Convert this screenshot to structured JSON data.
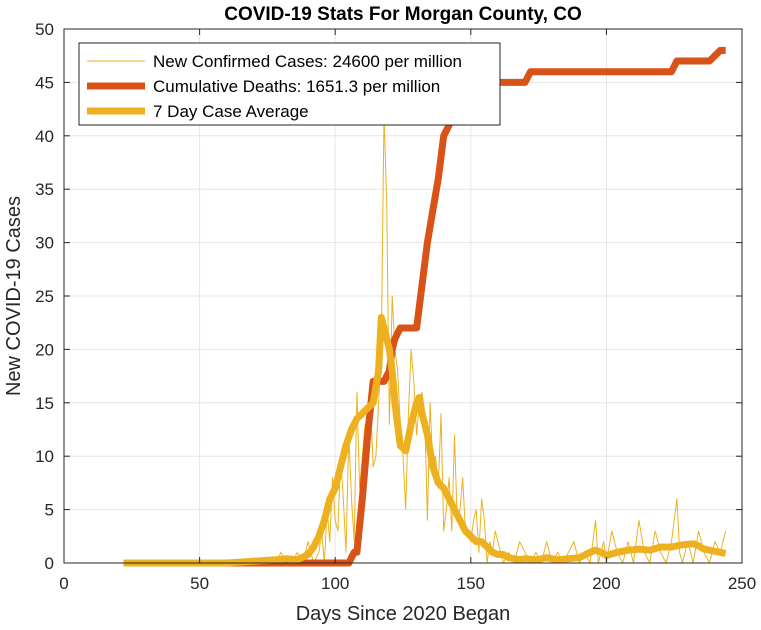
{
  "chart_data": {
    "type": "line",
    "title": "COVID-19 Stats For Morgan County, CO",
    "xlabel": "Days Since 2020 Began",
    "ylabel": "New COVID-19 Cases",
    "xlim": [
      0,
      250
    ],
    "ylim": [
      0,
      50
    ],
    "xticks": [
      0,
      50,
      100,
      150,
      200,
      250
    ],
    "yticks": [
      0,
      5,
      10,
      15,
      20,
      25,
      30,
      35,
      40,
      45,
      50
    ],
    "grid": true,
    "legend_position": "top-left",
    "series": [
      {
        "name": "New Confirmed Cases: 24600 per million",
        "color": "#EDB120",
        "style": "thin",
        "x": [
          22,
          40,
          60,
          78,
          80,
          82,
          84,
          86,
          88,
          90,
          92,
          94,
          95,
          96,
          97,
          98,
          99,
          100,
          101,
          102,
          103,
          104,
          105,
          106,
          107,
          108,
          109,
          110,
          111,
          112,
          113,
          114,
          115,
          116,
          117,
          118,
          119,
          120,
          121,
          122,
          123,
          124,
          125,
          126,
          127,
          128,
          129,
          130,
          131,
          132,
          133,
          134,
          135,
          136,
          137,
          138,
          139,
          140,
          141,
          142,
          143,
          144,
          145,
          146,
          147,
          148,
          149,
          150,
          151,
          152,
          153,
          154,
          155,
          156,
          157,
          158,
          159,
          160,
          162,
          164,
          166,
          168,
          170,
          172,
          174,
          176,
          178,
          180,
          182,
          184,
          186,
          188,
          190,
          192,
          194,
          196,
          197,
          198,
          199,
          200,
          202,
          204,
          206,
          208,
          210,
          212,
          214,
          216,
          218,
          220,
          222,
          224,
          226,
          227,
          228,
          230,
          232,
          234,
          236,
          238,
          240,
          242,
          244
        ],
        "y": [
          0,
          0,
          0,
          0,
          1,
          0,
          0,
          1,
          0,
          2,
          0,
          1,
          3,
          0,
          5,
          2,
          8,
          4,
          3,
          10,
          6,
          1,
          12,
          6,
          2,
          16,
          7,
          10,
          13,
          13,
          15,
          9,
          10,
          15,
          20,
          42,
          34,
          13,
          25,
          20,
          18,
          13,
          10,
          5,
          14,
          20,
          17,
          12,
          15,
          16,
          14,
          4,
          15,
          9,
          10,
          7,
          14,
          3,
          5,
          8,
          3,
          12,
          4,
          5,
          8,
          3,
          3,
          2,
          4,
          5,
          1,
          6,
          4,
          0,
          2,
          1,
          3,
          2,
          0,
          1,
          0,
          2,
          1,
          0,
          1,
          0,
          2,
          0,
          1,
          0,
          1,
          2,
          0,
          1,
          0,
          4,
          0,
          1,
          2,
          0,
          3,
          1,
          0,
          2,
          0,
          4,
          1,
          0,
          3,
          1,
          0,
          2,
          6,
          1,
          0,
          2,
          0,
          3,
          1,
          0,
          2,
          1,
          3
        ]
      },
      {
        "name": "Cumulative Deaths: 1651.3 per million",
        "color": "#D95319",
        "style": "thick",
        "x": [
          22,
          105,
          107,
          108,
          110,
          112,
          114,
          116,
          118,
          120,
          121,
          122,
          124,
          126,
          128,
          130,
          132,
          134,
          136,
          138,
          140,
          142,
          144,
          146,
          148,
          150,
          152,
          155,
          160,
          165,
          170,
          172,
          175,
          180,
          190,
          200,
          210,
          220,
          224,
          226,
          228,
          236,
          238,
          242,
          244
        ],
        "y": [
          0,
          0,
          1,
          1,
          6,
          12,
          17,
          17,
          17,
          18,
          20,
          21,
          22,
          22,
          22,
          22,
          26,
          30,
          33,
          36,
          40,
          41,
          42,
          43,
          43,
          44,
          44,
          45,
          45,
          45,
          45,
          46,
          46,
          46,
          46,
          46,
          46,
          46,
          46,
          47,
          47,
          47,
          47,
          48,
          48
        ]
      },
      {
        "name": "7 Day Case Average",
        "color": "#EDB120",
        "style": "thick",
        "x": [
          22,
          40,
          60,
          78,
          82,
          86,
          90,
          92,
          94,
          96,
          98,
          100,
          102,
          104,
          106,
          108,
          110,
          112,
          114,
          116,
          117,
          118,
          119,
          120,
          121,
          122,
          124,
          126,
          128,
          130,
          131,
          132,
          134,
          136,
          138,
          140,
          142,
          144,
          146,
          148,
          150,
          152,
          154,
          156,
          158,
          160,
          162,
          164,
          166,
          168,
          170,
          174,
          178,
          182,
          186,
          190,
          194,
          196,
          198,
          200,
          204,
          208,
          212,
          216,
          220,
          224,
          228,
          232,
          234,
          236,
          240,
          244
        ],
        "y": [
          0,
          0,
          0,
          0.3,
          0.4,
          0.3,
          0.8,
          1.5,
          2.5,
          4,
          6,
          7,
          9,
          11,
          12.5,
          13.5,
          14,
          14.5,
          15,
          18,
          23,
          22,
          21,
          20,
          18,
          15,
          11,
          10.5,
          13,
          15,
          15.5,
          14,
          12,
          9,
          7.5,
          7,
          6,
          5,
          4,
          3,
          2.5,
          2,
          2,
          1.5,
          1,
          0.8,
          0.8,
          0.5,
          0.4,
          0.3,
          0.4,
          0.3,
          0.5,
          0.3,
          0.4,
          0.5,
          1,
          1.2,
          1,
          0.7,
          1,
          1.2,
          1.3,
          1.2,
          1.5,
          1.5,
          1.7,
          1.8,
          1.6,
          1.3,
          1.1,
          0.9
        ]
      }
    ]
  }
}
